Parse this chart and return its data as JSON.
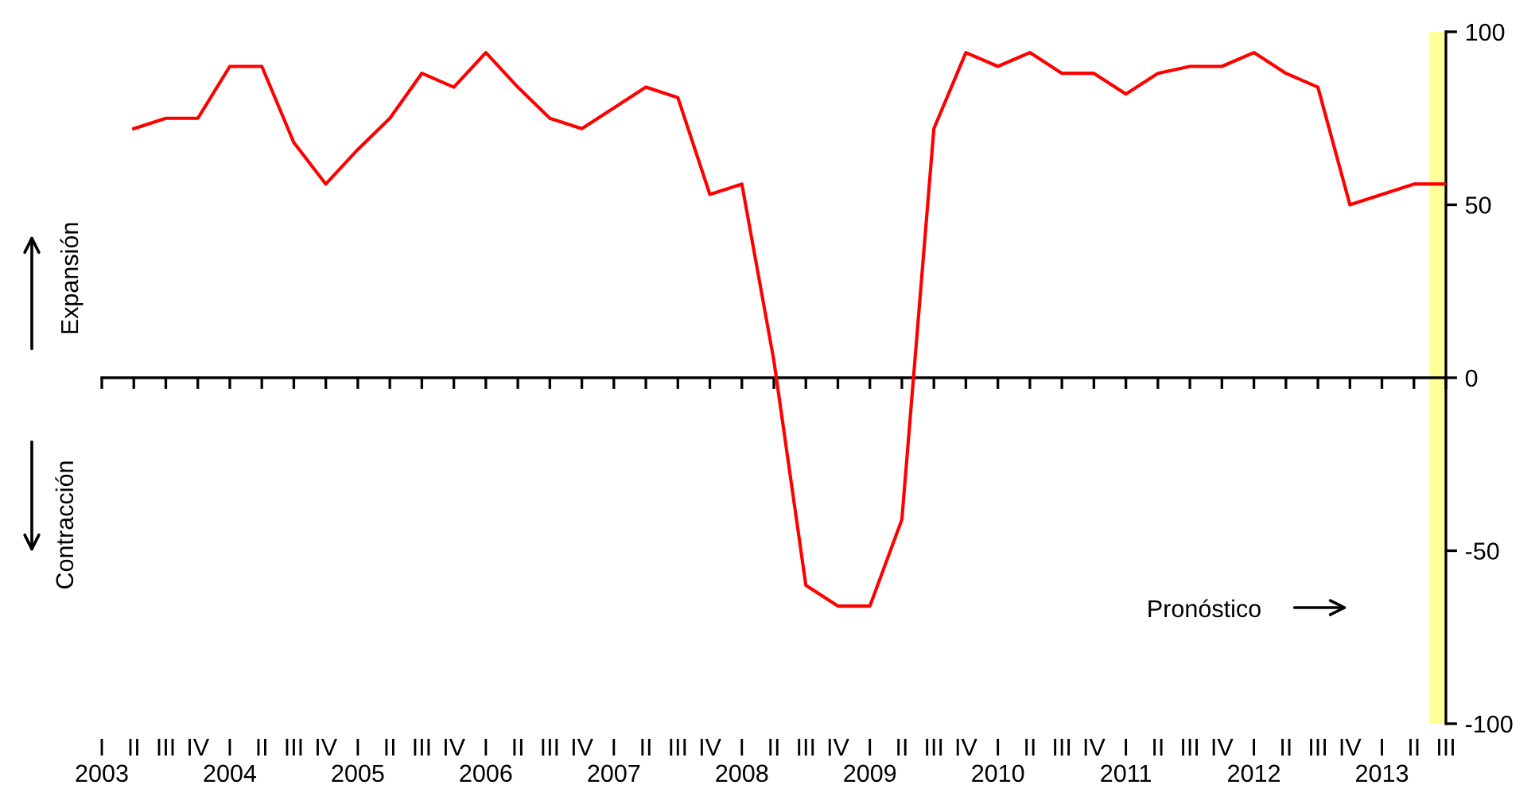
{
  "chart_data": {
    "type": "line",
    "x": [
      "2003-04",
      "2003-07",
      "2003-10",
      "2004-01",
      "2004-04",
      "2004-07",
      "2004-10",
      "2005-01",
      "2005-04",
      "2005-07",
      "2005-10",
      "2006-01",
      "2006-04",
      "2006-07",
      "2006-10",
      "2007-01",
      "2007-04",
      "2007-07",
      "2007-10",
      "2008-01",
      "2008-04",
      "2008-07",
      "2008-10",
      "2009-01",
      "2009-04",
      "2009-07",
      "2009-10",
      "2010-01",
      "2010-04",
      "2010-07",
      "2010-10",
      "2011-01",
      "2011-04",
      "2011-07",
      "2011-10",
      "2012-01",
      "2012-04",
      "2012-07",
      "2012-10",
      "2013-01",
      "2013-04",
      "2013-07"
    ],
    "series": [
      {
        "color": "#ff0000",
        "values": [
          72,
          75,
          75,
          90,
          90,
          68,
          56,
          66,
          75,
          88,
          84,
          94,
          84,
          75,
          72,
          78,
          84,
          81,
          53,
          56,
          5,
          -60,
          -66,
          -66,
          -41,
          72,
          94,
          90,
          94,
          88,
          88,
          82,
          88,
          90,
          90,
          94,
          88,
          84,
          50,
          53,
          56,
          56
        ]
      }
    ],
    "xlim": [
      "2003-01",
      "2013-07"
    ],
    "xticks": [
      {
        "value": "2003-01",
        "label": "I\n2003"
      },
      {
        "value": "2003-04",
        "label": "II"
      },
      {
        "value": "2003-07",
        "label": "III"
      },
      {
        "value": "2003-10",
        "label": "IV"
      },
      {
        "value": "2004-01",
        "label": "I\n2004"
      },
      {
        "value": "2004-04",
        "label": "II"
      },
      {
        "value": "2004-07",
        "label": "III"
      },
      {
        "value": "2004-10",
        "label": "IV"
      },
      {
        "value": "2005-01",
        "label": "I\n2005"
      },
      {
        "value": "2005-04",
        "label": "II"
      },
      {
        "value": "2005-07",
        "label": "III"
      },
      {
        "value": "2005-10",
        "label": "IV"
      },
      {
        "value": "2006-01",
        "label": "I\n2006"
      },
      {
        "value": "2006-04",
        "label": "II"
      },
      {
        "value": "2006-07",
        "label": "III"
      },
      {
        "value": "2006-10",
        "label": "IV"
      },
      {
        "value": "2007-01",
        "label": "I\n2007"
      },
      {
        "value": "2007-04",
        "label": "II"
      },
      {
        "value": "2007-07",
        "label": "III"
      },
      {
        "value": "2007-10",
        "label": "IV"
      },
      {
        "value": "2008-01",
        "label": "I\n2008"
      },
      {
        "value": "2008-04",
        "label": "II"
      },
      {
        "value": "2008-07",
        "label": "III"
      },
      {
        "value": "2008-10",
        "label": "IV"
      },
      {
        "value": "2009-01",
        "label": "I\n2009"
      },
      {
        "value": "2009-04",
        "label": "II"
      },
      {
        "value": "2009-07",
        "label": "III"
      },
      {
        "value": "2009-10",
        "label": "IV"
      },
      {
        "value": "2010-01",
        "label": "I\n2010"
      },
      {
        "value": "2010-04",
        "label": "II"
      },
      {
        "value": "2010-07",
        "label": "III"
      },
      {
        "value": "2010-10",
        "label": "IV"
      },
      {
        "value": "2011-01",
        "label": "I\n2011"
      },
      {
        "value": "2011-04",
        "label": "II"
      },
      {
        "value": "2011-07",
        "label": "III"
      },
      {
        "value": "2011-10",
        "label": "IV"
      },
      {
        "value": "2012-01",
        "label": "I\n2012"
      },
      {
        "value": "2012-04",
        "label": "II"
      },
      {
        "value": "2012-07",
        "label": "III"
      },
      {
        "value": "2012-10",
        "label": "IV"
      },
      {
        "value": "2013-01",
        "label": "I\n2013"
      },
      {
        "value": "2013-04",
        "label": "II"
      },
      {
        "value": "2013-07",
        "label": "III"
      }
    ],
    "ylim": [
      -100,
      100
    ],
    "yticks": [
      -100,
      -50,
      0,
      50,
      100
    ],
    "bands": [
      {
        "axis": "x",
        "from": "2013-05-15",
        "to": "2013-07",
        "color": "#ffff99"
      }
    ],
    "annotations": [
      "Expansión",
      "Contracción",
      "Pronóstico"
    ],
    "marker": "none",
    "line_style": "solid"
  }
}
